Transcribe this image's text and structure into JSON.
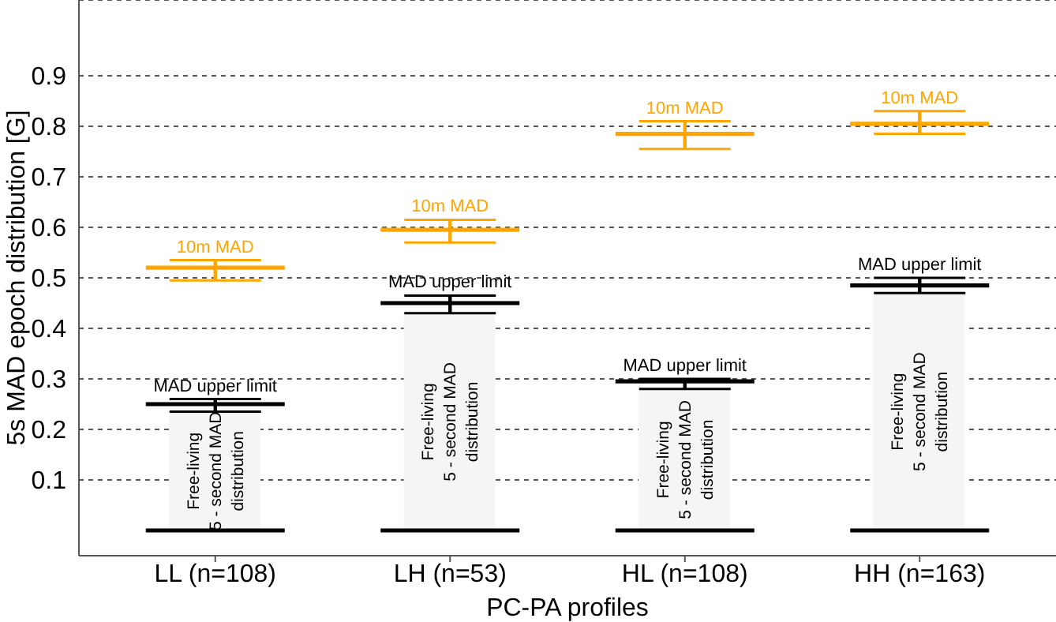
{
  "chart_data": {
    "type": "bar",
    "xlabel": "PC-PA profiles",
    "ylabel": "5s MAD epoch distribution [G]",
    "categories": [
      "LL (n=108)",
      "LH (n=53)",
      "HL (n=108)",
      "HH (n=163)"
    ],
    "series": [
      {
        "type": "bar",
        "name": "Free-living\n5 - second MAD\ndistribution",
        "color": "#f5f5f5",
        "values": [
          0.235,
          0.43,
          0.28,
          0.47
        ]
      },
      {
        "type": "box",
        "color": "#000000",
        "boxes": [
          {
            "low": 0,
            "q1": 0,
            "median": 0,
            "q3": 0,
            "high": 0
          },
          {
            "low": 0,
            "q1": 0,
            "median": 0,
            "q3": 0,
            "high": 0
          },
          {
            "low": 0,
            "q1": 0,
            "median": 0,
            "q3": 0,
            "high": 0
          },
          {
            "low": 0,
            "q1": 0,
            "median": 0,
            "q3": 0,
            "high": 0
          }
        ]
      },
      {
        "type": "box",
        "name": "MAD upper limit",
        "color": "#000000",
        "boxes": [
          {
            "low": 0.235,
            "q1": 0.25,
            "median": 0.25,
            "q3": 0.25,
            "high": 0.26
          },
          {
            "low": 0.43,
            "q1": 0.45,
            "median": 0.45,
            "q3": 0.45,
            "high": 0.465
          },
          {
            "low": 0.28,
            "q1": 0.295,
            "median": 0.295,
            "q3": 0.295,
            "high": 0.3
          },
          {
            "low": 0.47,
            "q1": 0.485,
            "median": 0.485,
            "q3": 0.485,
            "high": 0.5
          }
        ]
      },
      {
        "type": "box",
        "name": "10m MAD",
        "color": "#ffa500",
        "boxes": [
          {
            "low": 0.495,
            "q1": 0.52,
            "median": 0.52,
            "q3": 0.52,
            "high": 0.535
          },
          {
            "low": 0.57,
            "q1": 0.595,
            "median": 0.595,
            "q3": 0.595,
            "high": 0.615
          },
          {
            "low": 0.755,
            "q1": 0.785,
            "median": 0.785,
            "q3": 0.785,
            "high": 0.81
          },
          {
            "low": 0.785,
            "q1": 0.805,
            "median": 0.805,
            "q3": 0.805,
            "high": 0.83
          }
        ]
      }
    ],
    "ylim": [
      -0.05,
      1.05
    ],
    "yticks": [
      0.1,
      0.2,
      0.3,
      0.4,
      0.5,
      0.6,
      0.7,
      0.8,
      0.9
    ],
    "grid": "y"
  }
}
